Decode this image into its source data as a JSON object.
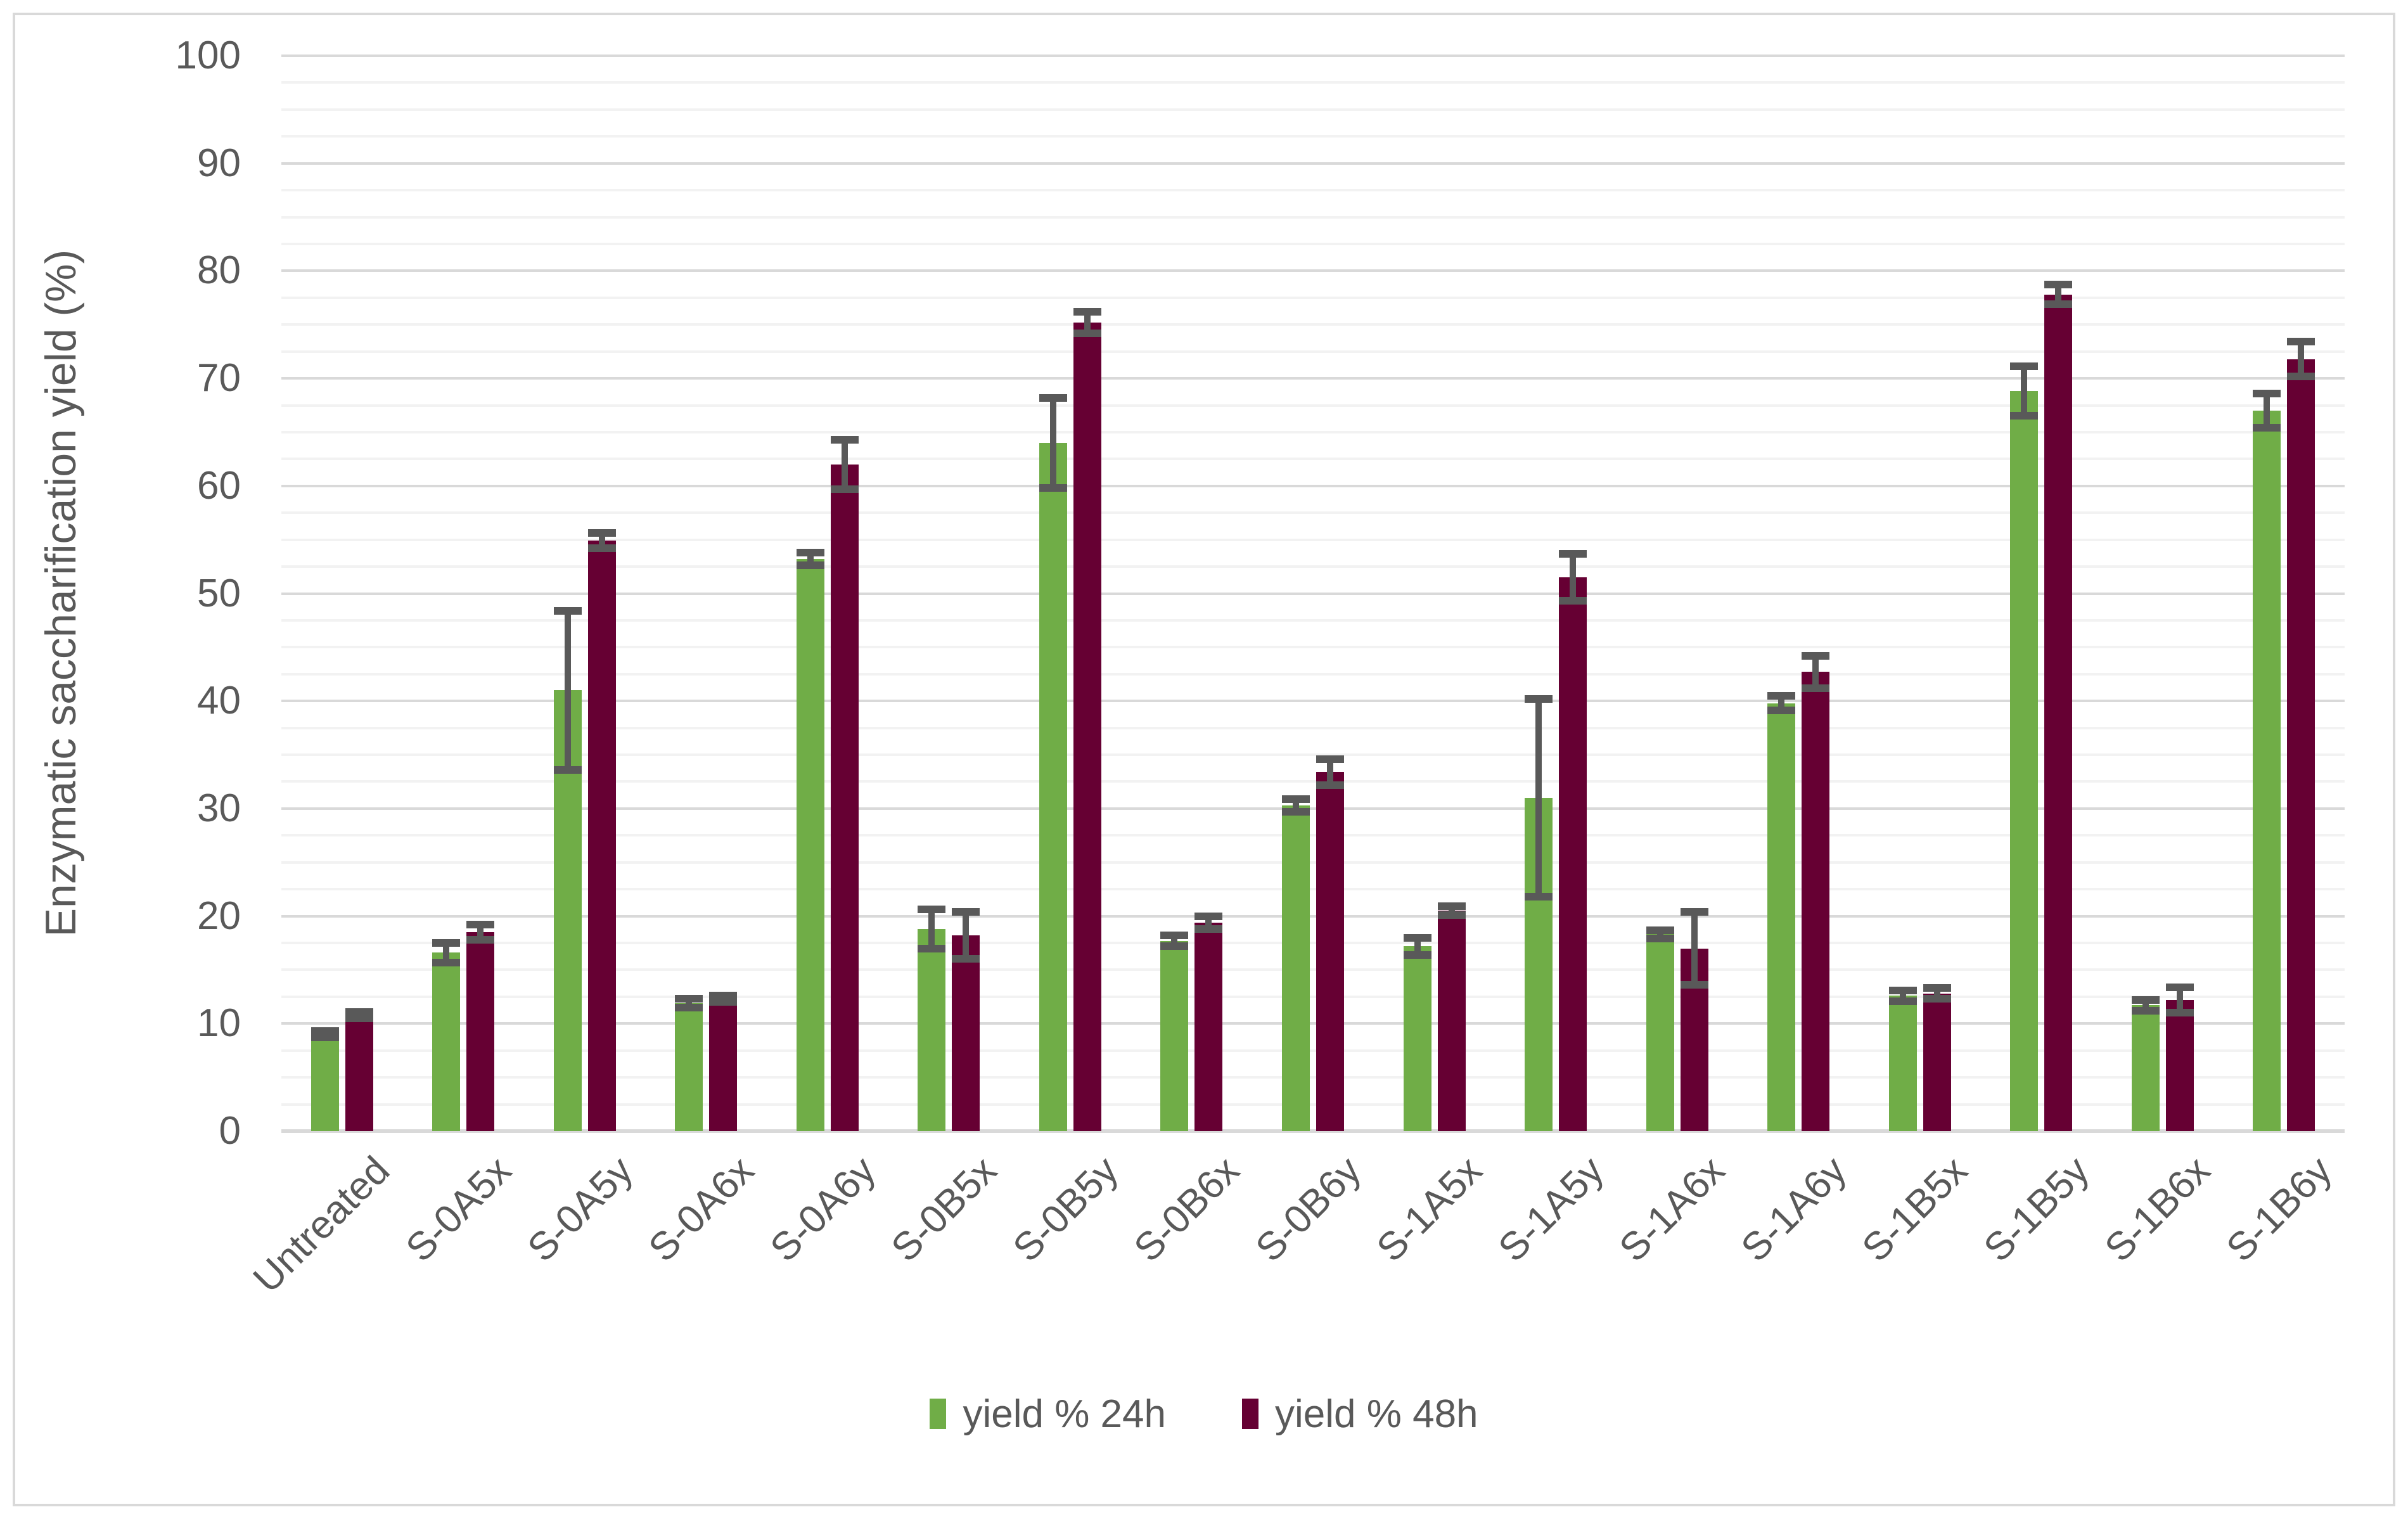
{
  "chart_data": {
    "type": "bar",
    "title": "",
    "xlabel": "",
    "ylabel": "Enzymatic saccharification yield (%)",
    "ylim": [
      0,
      100
    ],
    "ytick_major": 10,
    "ytick_minor": 2.5,
    "ytick_labels": [
      "0",
      "10",
      "20",
      "30",
      "40",
      "50",
      "60",
      "70",
      "80",
      "90",
      "100"
    ],
    "grid": "horizontal",
    "legend_position": "bottom",
    "error_bar_color": "#595959",
    "categories": [
      "Untreated",
      "S-0A5x",
      "S-0A5y",
      "S-0A6x",
      "S-0A6y",
      "S-0B5x",
      "S-0B5y",
      "S-0B6x",
      "S-0B6y",
      "S-1A5x",
      "S-1A5y",
      "S-1A6x",
      "S-1A6y",
      "S-1B5x",
      "S-1B5y",
      "S-1B6x",
      "S-1B6y"
    ],
    "series": [
      {
        "name": "yield % 24h",
        "color": "#70AD47",
        "values": [
          9.0,
          16.6,
          41.0,
          11.9,
          53.2,
          18.8,
          64.0,
          17.7,
          30.3,
          17.2,
          31.0,
          18.3,
          39.8,
          12.6,
          68.8,
          11.7,
          67.0
        ],
        "errors": [
          0.3,
          0.9,
          7.4,
          0.4,
          0.6,
          1.8,
          4.2,
          0.5,
          0.6,
          0.8,
          9.2,
          0.4,
          0.7,
          0.5,
          2.3,
          0.5,
          1.6
        ]
      },
      {
        "name": "yield % 48h",
        "color": "#660033",
        "values": [
          10.8,
          18.5,
          54.9,
          12.3,
          62.0,
          18.2,
          75.2,
          19.4,
          33.4,
          20.5,
          51.5,
          17.0,
          42.7,
          12.8,
          77.8,
          12.2,
          71.8
        ],
        "errors": [
          0.3,
          0.7,
          0.7,
          0.3,
          2.3,
          2.2,
          1.0,
          0.6,
          1.2,
          0.4,
          2.2,
          3.4,
          1.5,
          0.5,
          0.9,
          1.2,
          1.6
        ]
      }
    ]
  }
}
